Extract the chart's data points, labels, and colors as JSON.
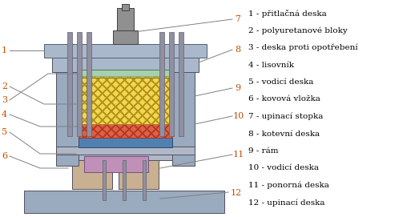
{
  "bg_color": "#ffffff",
  "legend_items": [
    "1 - přitlačná deska",
    "2 - polyuretanové bloky",
    "3 - deska proti opotřebení",
    "4 - lisovník",
    "5 - vodicí deska",
    "6 - kovová vložka",
    "7 - upinací stopka",
    "8 - kotevní deska",
    "9 - rám",
    "10 - vodicí deska",
    "11 - ponorná deska",
    "12 - upinací deska"
  ],
  "label_color": "#c05000",
  "line_color": "#808080",
  "text_color": "#000000",
  "font_size": 7.5,
  "number_font_size": 8.0,
  "colors": {
    "gray_light": "#b0b8c8",
    "gray_mid": "#8090a8",
    "gray_dark": "#6070808",
    "green_light": "#a8d0b0",
    "yellow_hatch": "#f0d848",
    "red_hatch": "#d04020",
    "blue_strip": "#5080b0",
    "purple_part": "#c090b8",
    "tan_part": "#c8b090",
    "steel": "#909090",
    "frame_fill": "#9aaabf",
    "top_plate": "#aab8cc",
    "bottom_plate": "#9aaabf"
  }
}
